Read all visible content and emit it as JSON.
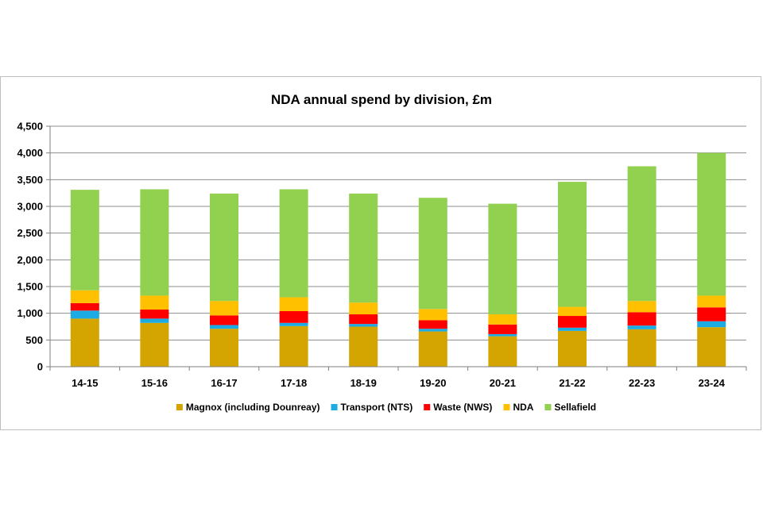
{
  "chart_data": {
    "type": "bar",
    "stacked": true,
    "title": "NDA annual spend by division, £m",
    "xlabel": "",
    "ylabel": "",
    "ylim": [
      0,
      4500
    ],
    "yticks": [
      0,
      500,
      1000,
      1500,
      2000,
      2500,
      3000,
      3500,
      4000,
      4500
    ],
    "ytick_labels": [
      "0",
      "500",
      "1,000",
      "1,500",
      "2,000",
      "2,500",
      "3,000",
      "3,500",
      "4,000",
      "4,500"
    ],
    "grid": true,
    "legend_position": "bottom",
    "categories": [
      "14-15",
      "15-16",
      "16-17",
      "17-18",
      "18-19",
      "19-20",
      "20-21",
      "21-22",
      "22-23",
      "23-24"
    ],
    "series": [
      {
        "name": "Magnox (including Dounreay)",
        "color": "#d4a400",
        "values": [
          900,
          820,
          710,
          760,
          750,
          660,
          570,
          670,
          700,
          740
        ]
      },
      {
        "name": "Transport (NTS)",
        "color": "#1cabe2",
        "values": [
          150,
          80,
          70,
          60,
          50,
          50,
          40,
          60,
          70,
          110
        ]
      },
      {
        "name": "Waste (NWS)",
        "color": "#ff0000",
        "values": [
          140,
          170,
          180,
          220,
          180,
          160,
          180,
          220,
          250,
          260
        ]
      },
      {
        "name": "NDA",
        "color": "#ffc000",
        "values": [
          240,
          260,
          270,
          260,
          220,
          210,
          190,
          170,
          210,
          220
        ]
      },
      {
        "name": "Sellafield",
        "color": "#92d050",
        "values": [
          1880,
          1990,
          2010,
          2020,
          2040,
          2080,
          2070,
          2340,
          2520,
          2670
        ]
      }
    ]
  }
}
